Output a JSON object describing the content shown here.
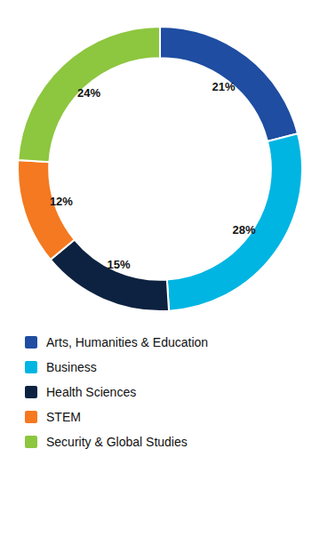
{
  "chart_data": {
    "type": "donut",
    "categories": [
      "Arts, Humanities & Education",
      "Business",
      "Health Sciences",
      "STEM",
      "Security & Global Studies"
    ],
    "values": [
      21,
      28,
      15,
      12,
      24
    ],
    "value_labels": [
      "21%",
      "28%",
      "15%",
      "12%",
      "24%"
    ],
    "colors": [
      "#1e4da1",
      "#00b5e2",
      "#0d2240",
      "#f47920",
      "#8dc63f"
    ],
    "data_labels": true,
    "legend": "bottom"
  }
}
